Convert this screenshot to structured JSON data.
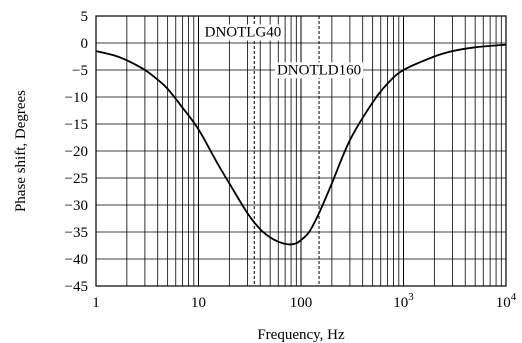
{
  "chart_data": {
    "type": "line",
    "xlabel": "Frequency, Hz",
    "ylabel": "Phase shift, Degrees",
    "x_scale": "log",
    "xlim": [
      1,
      10000
    ],
    "ylim": [
      -45,
      5
    ],
    "grid": true,
    "x_ticks": [
      {
        "value": 1,
        "label": "1"
      },
      {
        "value": 10,
        "label": "10"
      },
      {
        "value": 100,
        "label": "100"
      },
      {
        "value": 1000,
        "base": "10",
        "exp": "3"
      },
      {
        "value": 10000,
        "base": "10",
        "exp": "4"
      }
    ],
    "y_ticks": [
      5,
      0,
      -5,
      -10,
      -15,
      -20,
      -25,
      -30,
      -35,
      -40,
      -45
    ],
    "series": [
      {
        "x": [
          1,
          1.5,
          2,
          3,
          4,
          5,
          7,
          10,
          15,
          20,
          30,
          40,
          50,
          60,
          70,
          80,
          90,
          100,
          120,
          150,
          200,
          300,
          500,
          700,
          1000,
          2000,
          3000,
          5000,
          10000
        ],
        "values": [
          -1.5,
          -2.3,
          -3.2,
          -5,
          -6.8,
          -8.5,
          -12,
          -16,
          -22,
          -26,
          -31.5,
          -34.5,
          -36,
          -36.8,
          -37.2,
          -37.3,
          -37.1,
          -36.5,
          -35,
          -31.5,
          -26,
          -18,
          -11,
          -7.5,
          -5,
          -2.5,
          -1.5,
          -0.8,
          -0.3
        ]
      }
    ],
    "markers": [
      {
        "x": 35,
        "label": "DNOTLG40"
      },
      {
        "x": 150,
        "label": "DNOTLD160"
      }
    ]
  }
}
